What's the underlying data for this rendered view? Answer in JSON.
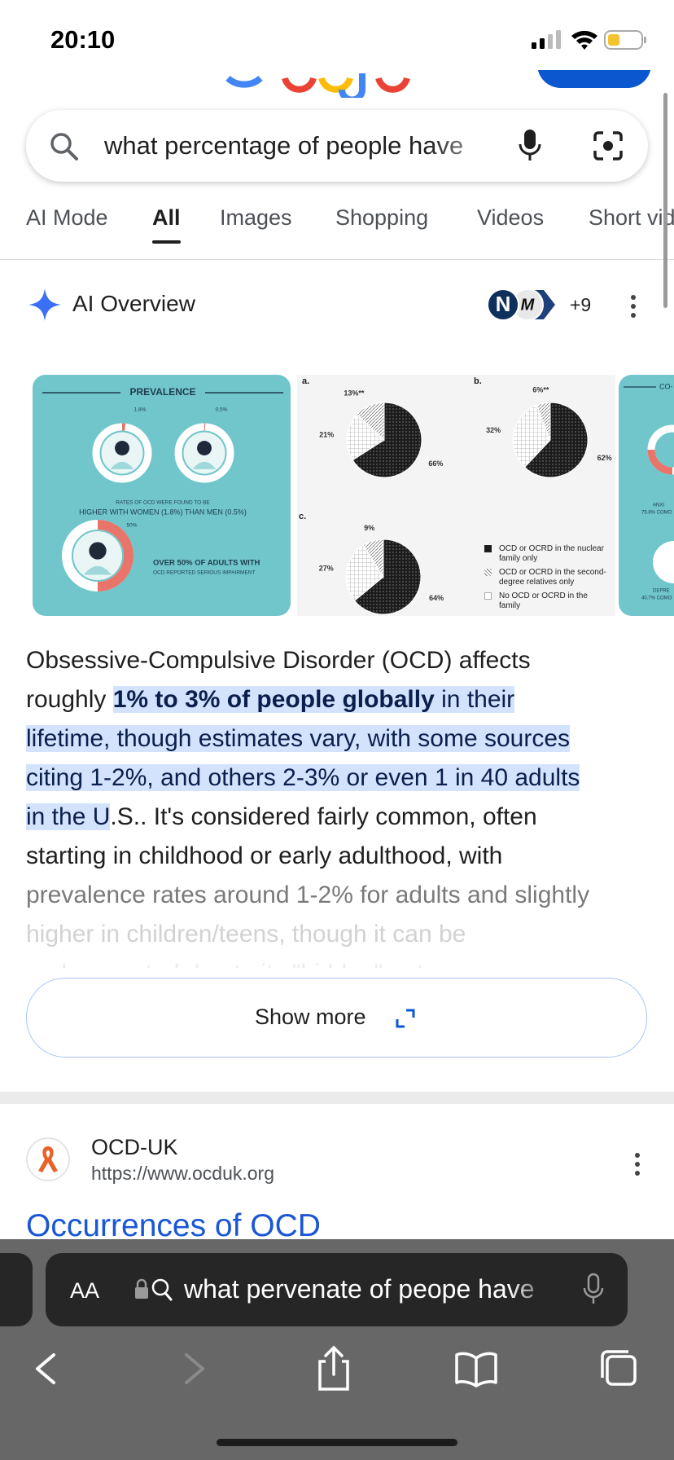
{
  "status_bar": {
    "time": "20:10"
  },
  "search": {
    "query": "what percentage of people have"
  },
  "tabs": [
    "AI Mode",
    "All",
    "Images",
    "Shopping",
    "Videos",
    "Short videos"
  ],
  "ai_overview": {
    "title": "AI Overview",
    "source_icons": [
      "N",
      "M"
    ],
    "more_sources": "+9",
    "infographic": {
      "title": "PREVALENCE",
      "rings": [
        {
          "value": 1.8,
          "label": "1.8%"
        },
        {
          "value": 0.5,
          "label": "0.5%"
        },
        {
          "value": 50,
          "label": "50%"
        }
      ],
      "caption": [
        "RATES OF OCD WERE FOUND TO BE",
        "HIGHER WITH WOMEN (1.8%) THAN MEN (0.5%)"
      ],
      "impairment": [
        "OVER 50% OF ADULTS WITH",
        "OCD REPORTED SERIOUS IMPAIRMENT"
      ]
    },
    "pie_panel": {
      "legend": [
        "OCD or OCRD in the nuclear family only",
        "OCD or OCRD in the second-degree relatives only",
        "No OCD or OCRD in the family"
      ],
      "pies": [
        {
          "label": "a.",
          "values": [
            66,
            13,
            21
          ],
          "value_labels": [
            "66%",
            "13%**",
            "21%"
          ]
        },
        {
          "label": "b.",
          "values": [
            62,
            6,
            32
          ],
          "value_labels": [
            "62%",
            "6%**",
            "32%"
          ]
        },
        {
          "label": "c.",
          "values": [
            64,
            9,
            27
          ],
          "value_labels": [
            "64%",
            "9%",
            "27%"
          ]
        }
      ]
    },
    "side_image": {
      "texts": [
        "CO-",
        "ANXI",
        "75.8% COMO",
        "DEPRE",
        "40.7% COMO"
      ]
    },
    "paragraph": {
      "lines": [
        [
          "Obsessive-Compulsive Disorder (OCD) affects"
        ],
        [
          "roughly ",
          "1% to 3% of people globally",
          " in their"
        ],
        [
          "lifetime, though estimates vary, with some sources"
        ],
        [
          "citing 1-2%, and others 2-3% or even 1 in 40 adults"
        ],
        [
          "in the U",
          ".S.. It's considered fairly common, often"
        ],
        [
          "starting in childhood or early adulthood, with"
        ],
        [
          "prevalence rates around 1-2% for adults and slightly"
        ],
        [
          "higher in children/teens, though it can be"
        ],
        [
          "underreported due to its \"hidden\" nature..."
        ]
      ]
    },
    "show_more": "Show more"
  },
  "result": {
    "site": "OCD-UK",
    "url": "https://www.ocduk.org",
    "title": "Occurrences of OCD"
  },
  "safari": {
    "text_size": "AA",
    "address": "what pervenate of peope have"
  }
}
